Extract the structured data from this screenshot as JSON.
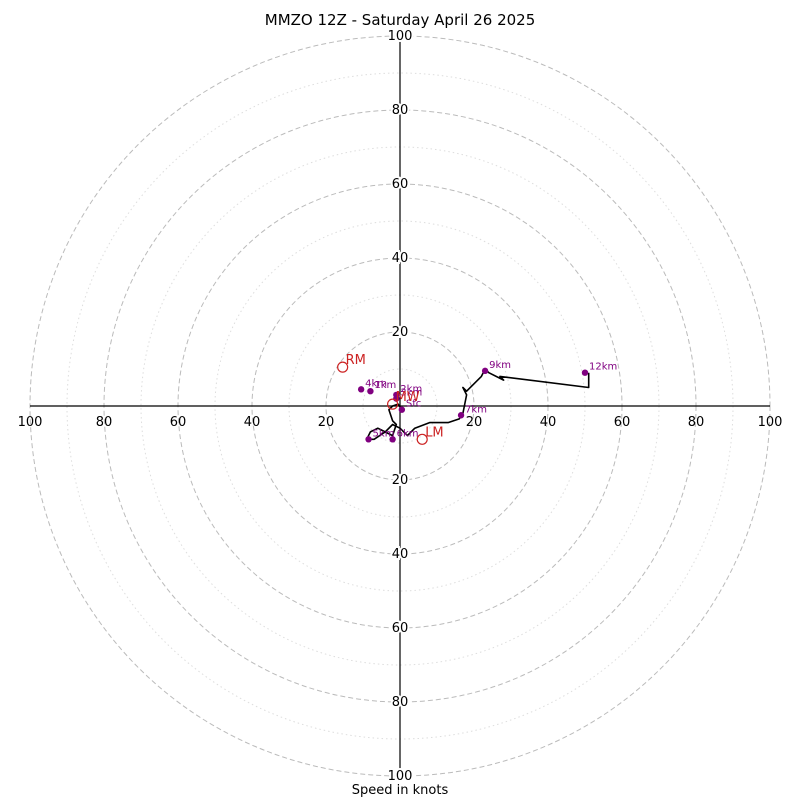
{
  "chart_data": {
    "type": "hodograph",
    "title": "MMZO 12Z - Saturday April 26 2025",
    "xlabel": "Speed in knots",
    "range": [
      0,
      100
    ],
    "major_rings": [
      20,
      40,
      60,
      80,
      100
    ],
    "minor_rings": [
      10,
      30,
      50,
      70,
      90
    ],
    "tick_labels": {
      "right": [
        "20",
        "40",
        "60",
        "80",
        "100"
      ],
      "left": [
        "20",
        "40",
        "60",
        "80",
        "100"
      ],
      "up": [
        "20",
        "40",
        "60",
        "80",
        "100"
      ],
      "down": [
        "20",
        "40",
        "60",
        "80",
        "100"
      ]
    },
    "hodograph_trace": [
      [
        0.5,
        -1
      ],
      [
        -0.5,
        0.5
      ],
      [
        -2,
        0
      ],
      [
        -3,
        -1
      ],
      [
        -2,
        -4
      ],
      [
        -1,
        -5
      ],
      [
        -2,
        -8
      ],
      [
        -6,
        -6
      ],
      [
        -8,
        -7
      ],
      [
        -9,
        -9
      ],
      [
        -7,
        -9
      ],
      [
        -4,
        -7
      ],
      [
        -2,
        -5
      ],
      [
        0,
        -6
      ],
      [
        2,
        -8
      ],
      [
        4,
        -6
      ],
      [
        8,
        -4.5
      ],
      [
        13,
        -4.5
      ],
      [
        16,
        -3.5
      ],
      [
        17,
        -2
      ],
      [
        18,
        3
      ],
      [
        17,
        5
      ],
      [
        18,
        4
      ],
      [
        22,
        8
      ],
      [
        23,
        10
      ],
      [
        24,
        9
      ],
      [
        28,
        7
      ],
      [
        27,
        8
      ],
      [
        51,
        5
      ],
      [
        51,
        9
      ]
    ],
    "marked_points": [
      {
        "label": "Sfc",
        "u": 0.5,
        "v": -1
      },
      {
        "label": "2km",
        "u": -1,
        "v": 3
      },
      {
        "label": "3km",
        "u": -1,
        "v": 2
      },
      {
        "label": "4km",
        "u": -10.5,
        "v": 4.5
      },
      {
        "label": "5km",
        "u": -8.5,
        "v": -9
      },
      {
        "label": "6km",
        "u": -2,
        "v": -9
      },
      {
        "label": "7km",
        "u": 16.5,
        "v": -2.5
      },
      {
        "label": "9km",
        "u": 23,
        "v": 9.5
      },
      {
        "label": "12km",
        "u": 50,
        "v": 9
      },
      {
        "label": "1km",
        "u": -8,
        "v": 4
      }
    ],
    "storm_motions": [
      {
        "label": "RM",
        "u": -15.5,
        "v": 10.5
      },
      {
        "label": "LM",
        "u": 6,
        "v": -9
      },
      {
        "label": "MW",
        "u": -2,
        "v": 0.5
      }
    ],
    "colors": {
      "trace": "#000000",
      "points": "#800080",
      "motion": "#cc2222",
      "major_ring": "#bbbbbb",
      "minor_ring": "#dddddd"
    }
  }
}
